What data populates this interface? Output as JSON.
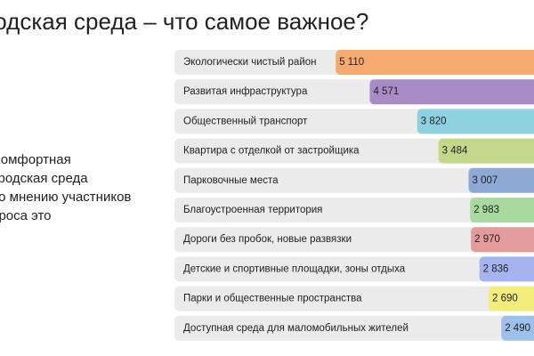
{
  "chart_data": {
    "type": "bar",
    "title": "Городская среда – что самое важное?",
    "subtitle": [
      "Комфортная",
      "городская среда",
      "по мнению участников",
      "опроса это"
    ],
    "categories": [
      "Экологически чистый район",
      "Развитая инфраструктура",
      "Общественный транспорт",
      "Квартира с отделкой от застройщика",
      "Парковочные места",
      "Благоустроенная территория",
      "Дороги без пробок, новые развязки",
      "Детские и спортивные площадки, зоны отдыха",
      "Парки и общественные пространства",
      "Доступная среда для маломобильных жителей"
    ],
    "values": [
      5110,
      4571,
      3820,
      3484,
      3007,
      2983,
      2970,
      2836,
      2690,
      2490
    ],
    "value_labels": [
      "5 110",
      "4 571",
      "3 820",
      "3 484",
      "3 007",
      "2 983",
      "2 970",
      "2 836",
      "2 690",
      "2 490"
    ],
    "colors": [
      "#f6aa70",
      "#a98bc8",
      "#8fd2df",
      "#c4d88c",
      "#8eaad4",
      "#a8daa0",
      "#e39b9b",
      "#a5b4ee",
      "#f3ee7c",
      "#9dc1ec"
    ]
  }
}
